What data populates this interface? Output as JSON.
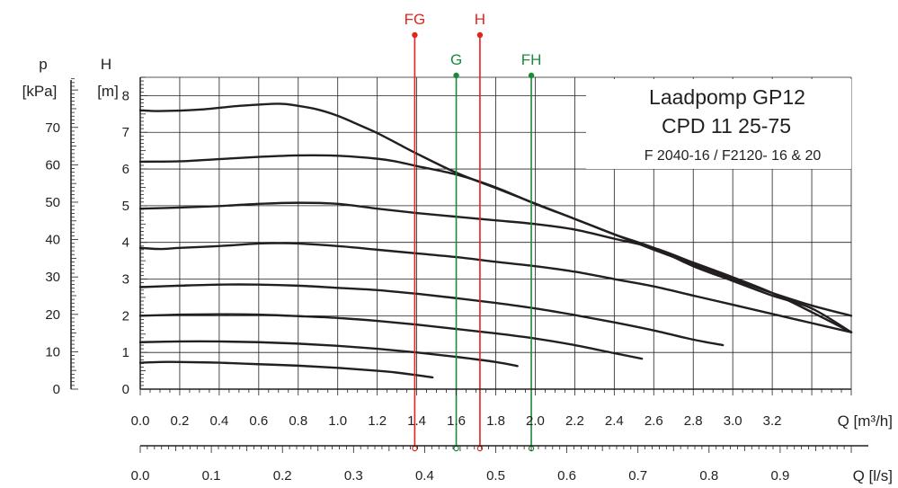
{
  "chart_data": {
    "type": "line",
    "title": [
      "Laadpomp GP12",
      "CPD 11  25-75",
      "F 2040-16  /  F2120- 16 & 20"
    ],
    "x_axis_main": {
      "label": "Q [m³/h]",
      "range": [
        0,
        3.6
      ],
      "ticks": [
        "0.0",
        "0.2",
        "0.4",
        "0.6",
        "0.8",
        "1.0",
        "1.2",
        "1.4",
        "1.6",
        "1.8",
        "2.0",
        "2.2",
        "2.4",
        "2.6",
        "2.8",
        "3.0",
        "3.2"
      ]
    },
    "x_axis_secondary": {
      "label": "Q [l/s]",
      "range": [
        0,
        1.0
      ],
      "ticks": [
        "0.0",
        "0.1",
        "0.2",
        "0.3",
        "0.4",
        "0.5",
        "0.6",
        "0.7",
        "0.8",
        "0.9"
      ]
    },
    "y_axis_main": {
      "label_symbol": "H",
      "label_unit": "[m]",
      "range": [
        0,
        8.5
      ],
      "ticks": [
        "0",
        "1",
        "2",
        "3",
        "4",
        "5",
        "6",
        "7",
        "8"
      ]
    },
    "y_axis_secondary": {
      "label_symbol": "p",
      "label_unit": "[kPa]",
      "range": [
        0,
        83.4
      ],
      "ticks": [
        "0",
        "10",
        "20",
        "30",
        "40",
        "50",
        "60",
        "70"
      ]
    },
    "grid": true,
    "series": [
      {
        "x": [
          0,
          0.1,
          0.3,
          0.5,
          0.7,
          0.8,
          0.9,
          1.0,
          1.1,
          1.2,
          1.3,
          1.4,
          1.6,
          1.8,
          2.0,
          2.2,
          2.4,
          2.6,
          2.8,
          3.0,
          3.2,
          3.4,
          3.6
        ],
        "y": [
          7.6,
          7.58,
          7.62,
          7.72,
          7.78,
          7.72,
          7.62,
          7.45,
          7.22,
          6.98,
          6.7,
          6.42,
          5.9,
          5.48,
          5.06,
          4.64,
          4.22,
          3.8,
          3.4,
          3.0,
          2.62,
          2.28,
          2.0
        ]
      },
      {
        "x": [
          0,
          0.2,
          0.4,
          0.6,
          0.8,
          1.0,
          1.2,
          1.3,
          1.4,
          1.6,
          1.8,
          2.0,
          2.2,
          2.4,
          2.6,
          2.8,
          3.0,
          3.2,
          3.4,
          3.6
        ],
        "y": [
          6.2,
          6.21,
          6.27,
          6.33,
          6.37,
          6.36,
          6.28,
          6.2,
          6.08,
          5.85,
          5.5,
          5.05,
          4.64,
          4.22,
          3.85,
          3.35,
          2.95,
          2.55,
          2.2,
          1.55
        ]
      },
      {
        "x": [
          0,
          0.2,
          0.4,
          0.6,
          0.8,
          1.0,
          1.2,
          1.4,
          1.6,
          1.8,
          2.0,
          2.2,
          2.4,
          2.6,
          2.8,
          3.0,
          3.2,
          3.4,
          3.6
        ],
        "y": [
          4.92,
          4.95,
          4.99,
          5.05,
          5.08,
          5.05,
          4.92,
          4.8,
          4.7,
          4.6,
          4.5,
          4.35,
          4.1,
          3.85,
          3.45,
          3.05,
          2.62,
          2.1,
          1.55
        ]
      },
      {
        "x": [
          0,
          0.1,
          0.2,
          0.4,
          0.6,
          0.7,
          0.8,
          1.0,
          1.2,
          1.4,
          1.6,
          1.8,
          2.0,
          2.2,
          2.4,
          2.6,
          2.8,
          3.0,
          3.2,
          3.4,
          3.6
        ],
        "y": [
          3.85,
          3.82,
          3.85,
          3.9,
          3.97,
          3.98,
          3.97,
          3.9,
          3.8,
          3.7,
          3.6,
          3.47,
          3.35,
          3.2,
          3.0,
          2.8,
          2.55,
          2.3,
          2.05,
          1.8,
          1.55
        ]
      },
      {
        "x": [
          0,
          0.2,
          0.4,
          0.6,
          0.8,
          1.0,
          1.2,
          1.4,
          1.6,
          1.8,
          2.0,
          2.2,
          2.4,
          2.6,
          2.8,
          2.95
        ],
        "y": [
          2.78,
          2.82,
          2.85,
          2.85,
          2.82,
          2.76,
          2.7,
          2.6,
          2.48,
          2.35,
          2.2,
          2.02,
          1.82,
          1.6,
          1.35,
          1.2
        ]
      },
      {
        "x": [
          0,
          0.2,
          0.4,
          0.6,
          0.8,
          1.0,
          1.2,
          1.4,
          1.6,
          1.8,
          2.0,
          2.2,
          2.4,
          2.54
        ],
        "y": [
          2.0,
          2.03,
          2.04,
          2.03,
          1.99,
          1.94,
          1.86,
          1.76,
          1.64,
          1.52,
          1.38,
          1.2,
          0.98,
          0.83
        ]
      },
      {
        "x": [
          0,
          0.2,
          0.4,
          0.6,
          0.8,
          1.0,
          1.2,
          1.4,
          1.6,
          1.8,
          1.91
        ],
        "y": [
          1.28,
          1.3,
          1.3,
          1.28,
          1.24,
          1.18,
          1.1,
          1.0,
          0.88,
          0.74,
          0.63
        ]
      },
      {
        "x": [
          0,
          0.1,
          0.2,
          0.4,
          0.6,
          0.8,
          1.0,
          1.2,
          1.3,
          1.4,
          1.48
        ],
        "y": [
          0.72,
          0.74,
          0.74,
          0.72,
          0.68,
          0.64,
          0.58,
          0.5,
          0.45,
          0.38,
          0.32
        ]
      }
    ],
    "markers": [
      {
        "label": "FG",
        "q_m3h": 1.39,
        "color": "#e3241b"
      },
      {
        "label": "H",
        "q_m3h": 1.72,
        "color": "#e3241b"
      },
      {
        "label": "G",
        "q_m3h": 1.6,
        "color": "#1b8a3a"
      },
      {
        "label": "FH",
        "q_m3h": 1.98,
        "color": "#1b8a3a"
      }
    ],
    "line_color": "#231f20",
    "grid_color": "#231f20"
  }
}
